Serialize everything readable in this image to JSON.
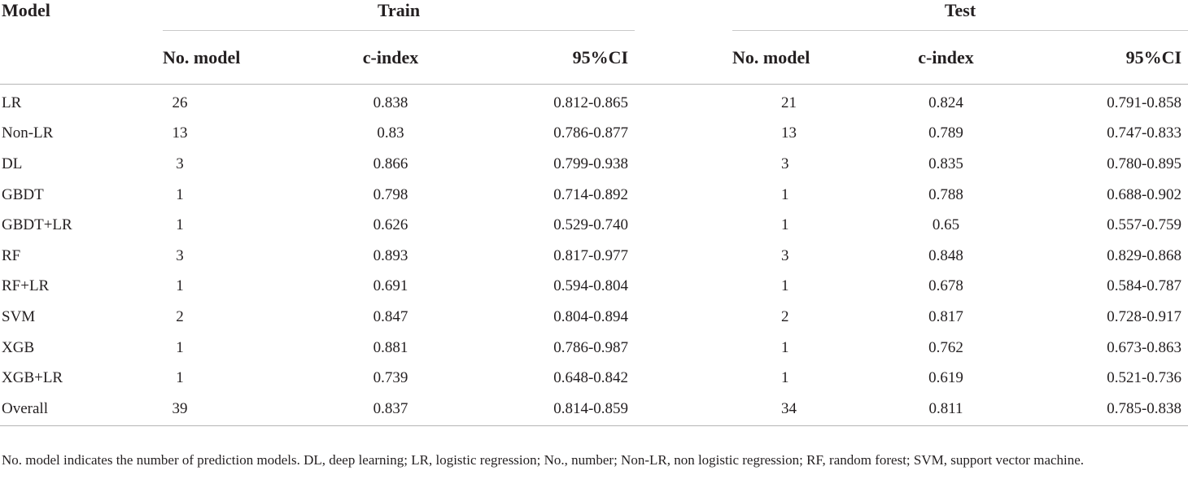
{
  "table": {
    "header": {
      "model": "Model",
      "train_group": "Train",
      "test_group": "Test",
      "train_cols": [
        "No. model",
        "c-index",
        "95%CI"
      ],
      "test_cols": [
        "No. model",
        "c-index",
        "95%CI"
      ]
    },
    "rows": [
      {
        "model": "LR",
        "train_n": "26",
        "train_c": "0.838",
        "train_ci": "0.812-0.865",
        "test_n": "21",
        "test_c": "0.824",
        "test_ci": "0.791-0.858"
      },
      {
        "model": "Non-LR",
        "train_n": "13",
        "train_c": "0.83",
        "train_ci": "0.786-0.877",
        "test_n": "13",
        "test_c": "0.789",
        "test_ci": "0.747-0.833"
      },
      {
        "model": "DL",
        "train_n": "3",
        "train_c": "0.866",
        "train_ci": "0.799-0.938",
        "test_n": "3",
        "test_c": "0.835",
        "test_ci": "0.780-0.895"
      },
      {
        "model": "GBDT",
        "train_n": "1",
        "train_c": "0.798",
        "train_ci": "0.714-0.892",
        "test_n": "1",
        "test_c": "0.788",
        "test_ci": "0.688-0.902"
      },
      {
        "model": "GBDT+LR",
        "train_n": "1",
        "train_c": "0.626",
        "train_ci": "0.529-0.740",
        "test_n": "1",
        "test_c": "0.65",
        "test_ci": "0.557-0.759"
      },
      {
        "model": "RF",
        "train_n": "3",
        "train_c": "0.893",
        "train_ci": "0.817-0.977",
        "test_n": "3",
        "test_c": "0.848",
        "test_ci": "0.829-0.868"
      },
      {
        "model": "RF+LR",
        "train_n": "1",
        "train_c": "0.691",
        "train_ci": "0.594-0.804",
        "test_n": "1",
        "test_c": "0.678",
        "test_ci": "0.584-0.787"
      },
      {
        "model": "SVM",
        "train_n": "2",
        "train_c": "0.847",
        "train_ci": "0.804-0.894",
        "test_n": "2",
        "test_c": "0.817",
        "test_ci": "0.728-0.917"
      },
      {
        "model": "XGB",
        "train_n": "1",
        "train_c": "0.881",
        "train_ci": "0.786-0.987",
        "test_n": "1",
        "test_c": "0.762",
        "test_ci": "0.673-0.863"
      },
      {
        "model": "XGB+LR",
        "train_n": "1",
        "train_c": "0.739",
        "train_ci": "0.648-0.842",
        "test_n": "1",
        "test_c": "0.619",
        "test_ci": "0.521-0.736"
      },
      {
        "model": "Overall",
        "train_n": "39",
        "train_c": "0.837",
        "train_ci": "0.814-0.859",
        "test_n": "34",
        "test_c": "0.811",
        "test_ci": "0.785-0.838"
      }
    ]
  },
  "footnote": "No. model indicates the number of prediction models. DL, deep learning; LR, logistic regression; No., number; Non-LR, non logistic regression; RF, random forest; SVM, support vector machine.",
  "colors": {
    "text": "#231f20",
    "rule": "#b5b5b5"
  }
}
